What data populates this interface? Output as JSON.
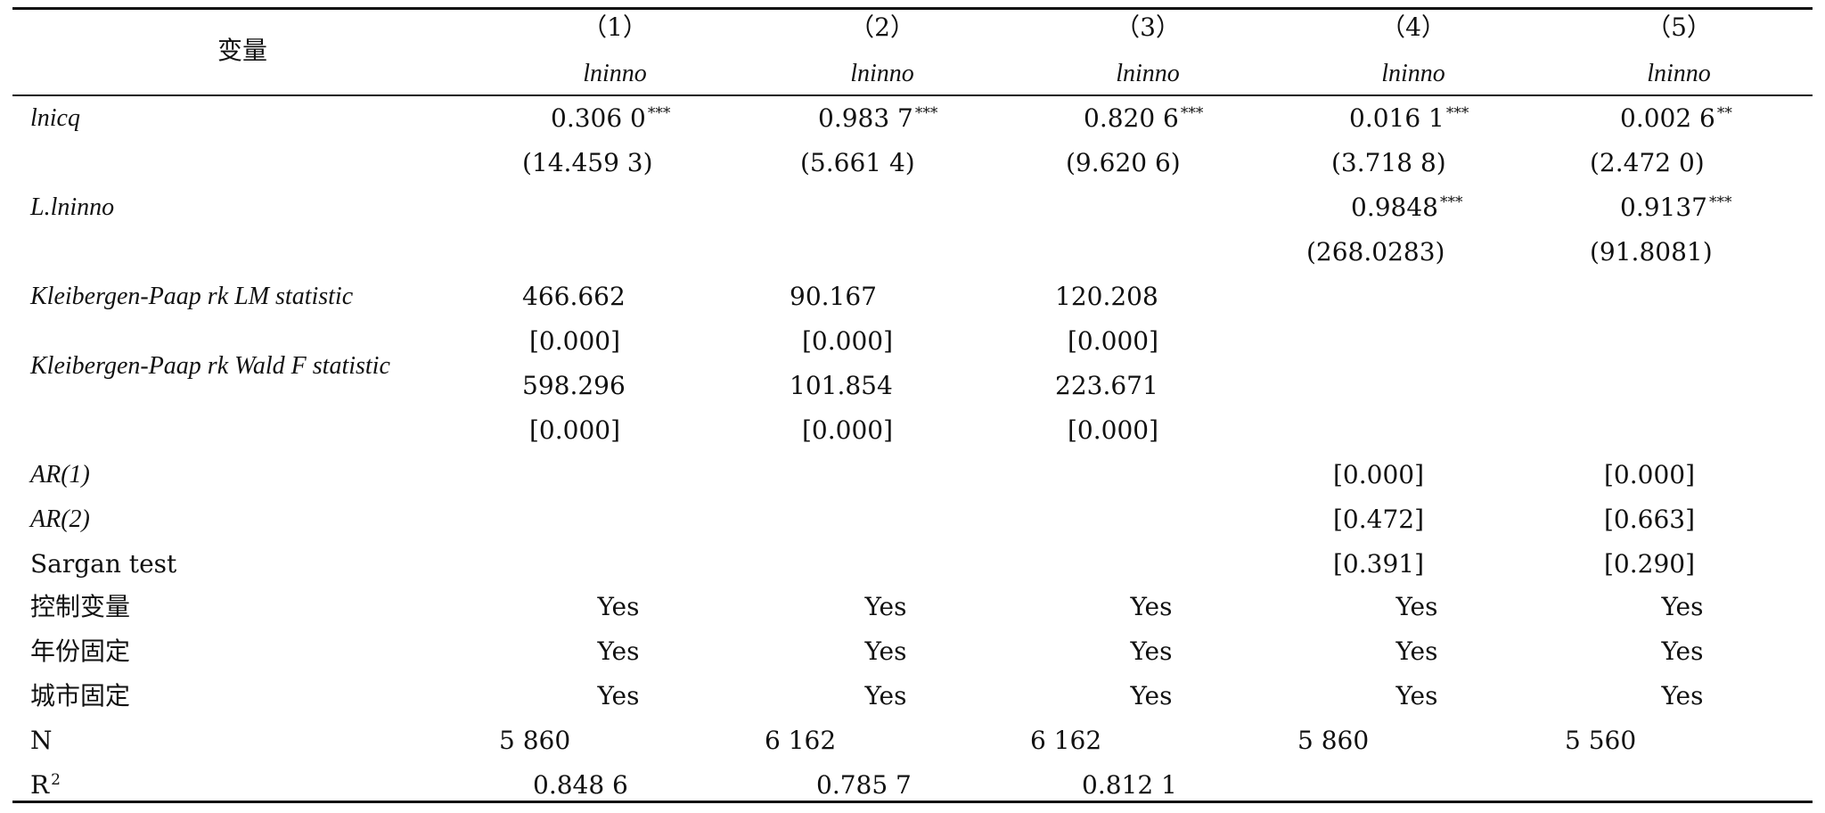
{
  "table": {
    "variable_header": "变量",
    "columns": [
      {
        "num": "（1）",
        "dep": "lninno"
      },
      {
        "num": "（2）",
        "dep": "lninno"
      },
      {
        "num": "（3）",
        "dep": "lninno"
      },
      {
        "num": "（4）",
        "dep": "lninno"
      },
      {
        "num": "（5）",
        "dep": "lninno"
      }
    ],
    "rows": {
      "lnicq": {
        "label": "lnicq",
        "coef": [
          "0.306 0",
          "0.983 7",
          "0.820 6",
          "0.016 1",
          "0.002 6"
        ],
        "stars": [
          "***",
          "***",
          "***",
          "***",
          "**"
        ],
        "t": [
          "(14.459 3)",
          "(5.661 4)",
          "(9.620 6)",
          "(3.718 8)",
          "(2.472 0)"
        ]
      },
      "lag": {
        "label": "L.lninno",
        "coef": [
          "0.9848",
          "0.9137"
        ],
        "stars": [
          "***",
          "***"
        ],
        "t": [
          "(268.0283)",
          "(91.8081)"
        ]
      },
      "kp_lm": {
        "label": "Kleibergen-Paap rk LM statistic",
        "values": [
          "466.662",
          "90.167",
          "120.208"
        ],
        "p": [
          "[0.000]",
          "[0.000]",
          "[0.000]"
        ]
      },
      "kp_wald": {
        "label": "Kleibergen-Paap rk Wald F statistic",
        "values": [
          "598.296",
          "101.854",
          "223.671"
        ],
        "p": [
          "[0.000]",
          "[0.000]",
          "[0.000]"
        ]
      },
      "ar1": {
        "label": "AR(1)",
        "p": [
          "[0.000]",
          "[0.000]"
        ]
      },
      "ar2": {
        "label": "AR(2)",
        "p": [
          "[0.472]",
          "[0.663]"
        ]
      },
      "sargan": {
        "label": "Sargan test",
        "p": [
          "[0.391]",
          "[0.290]"
        ]
      },
      "controls": {
        "label": "控制变量",
        "values": [
          "Yes",
          "Yes",
          "Yes",
          "Yes",
          "Yes"
        ]
      },
      "year_fe": {
        "label": "年份固定",
        "values": [
          "Yes",
          "Yes",
          "Yes",
          "Yes",
          "Yes"
        ]
      },
      "city_fe": {
        "label": "城市固定",
        "values": [
          "Yes",
          "Yes",
          "Yes",
          "Yes",
          "Yes"
        ]
      },
      "n": {
        "label": "N",
        "values": [
          "5 860",
          "6 162",
          "6 162",
          "5 860",
          "5 560"
        ]
      },
      "r2": {
        "label_base": "R",
        "label_sup": "2",
        "values": [
          "0.848 6",
          "0.785 7",
          "0.812 1"
        ]
      }
    }
  }
}
